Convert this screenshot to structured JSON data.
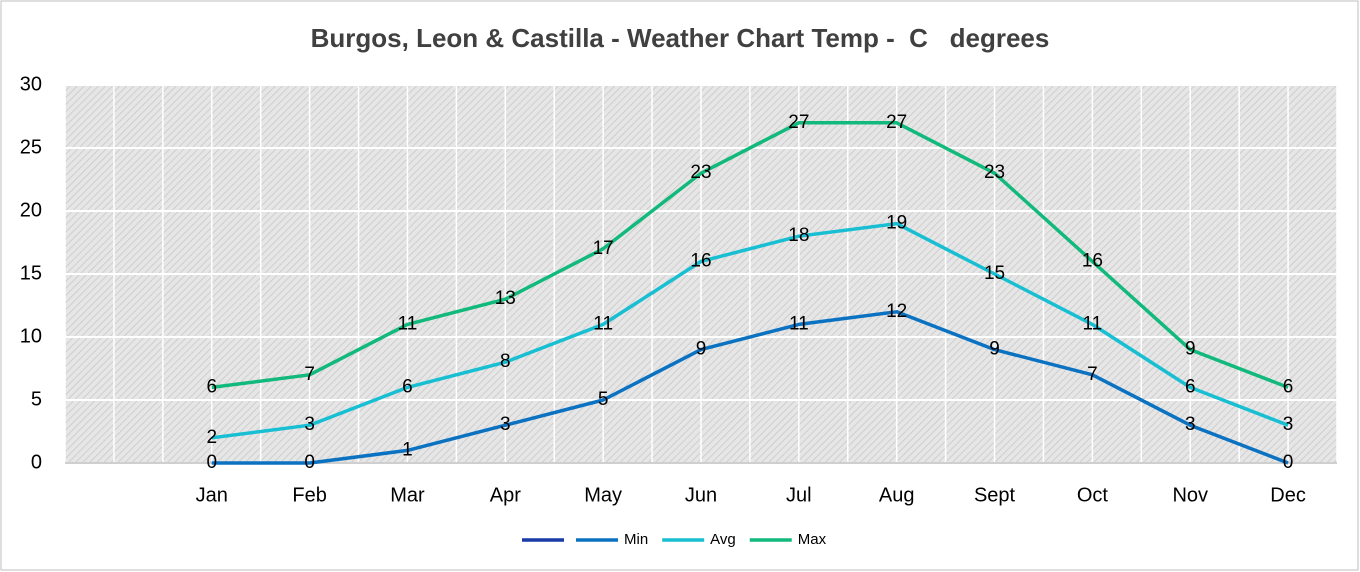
{
  "chart_data": {
    "type": "line",
    "title": "Burgos, Leon & Castilla - Weather Chart Temp -  C   degrees",
    "categories": [
      null,
      "Jan",
      "Feb",
      "Mar",
      "Apr",
      "May",
      "Jun",
      "Jul",
      "Aug",
      "Sept",
      "Oct",
      "Nov",
      "Dec"
    ],
    "series": [
      {
        "color": "#1a3aa6",
        "values": [
          null,
          null,
          null,
          null,
          null,
          null,
          null,
          null,
          null,
          null,
          null,
          null,
          null
        ]
      },
      {
        "name": "Min",
        "color": "#0b72c2",
        "values": [
          null,
          0,
          0,
          1,
          3,
          5,
          9,
          11,
          12,
          9,
          7,
          3,
          0
        ]
      },
      {
        "name": "Avg",
        "color": "#18bfd2",
        "values": [
          null,
          2,
          3,
          6,
          8,
          11,
          16,
          18,
          19,
          15,
          11,
          6,
          3
        ]
      },
      {
        "name": "Max",
        "color": "#12b97c",
        "values": [
          null,
          6,
          7,
          11,
          13,
          17,
          23,
          27,
          27,
          23,
          16,
          9,
          6
        ]
      }
    ],
    "ylim": [
      0,
      30
    ],
    "yticks": [
      0,
      5,
      10,
      15,
      20,
      25,
      30
    ],
    "grid": true,
    "legend": "bottom"
  }
}
